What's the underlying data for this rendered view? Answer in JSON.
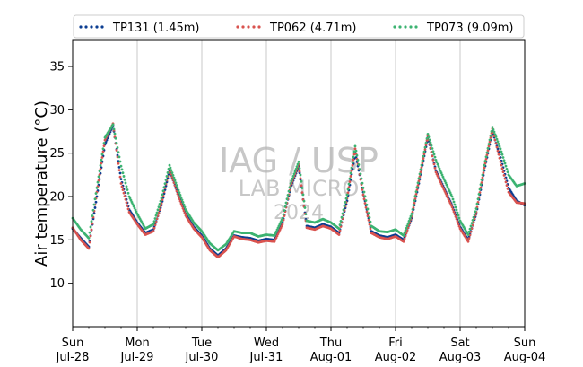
{
  "chart_data": {
    "type": "scatter",
    "ylabel": "Air temperature (°C)",
    "ylim": [
      5,
      38
    ],
    "yticks": [
      10,
      15,
      20,
      25,
      30,
      35
    ],
    "xlim": [
      "2024-07-28 00:00",
      "2024-08-04 00:00"
    ],
    "xticks": [
      {
        "day": "Sun",
        "date": "Jul-28"
      },
      {
        "day": "Mon",
        "date": "Jul-29"
      },
      {
        "day": "Tue",
        "date": "Jul-30"
      },
      {
        "day": "Wed",
        "date": "Jul-31"
      },
      {
        "day": "Thu",
        "date": "Aug-01"
      },
      {
        "day": "Fri",
        "date": "Aug-02"
      },
      {
        "day": "Sat",
        "date": "Aug-03"
      },
      {
        "day": "Sun",
        "date": "Aug-04"
      }
    ],
    "grid": "vertical-major",
    "legend_position": "top",
    "watermark": [
      "IAG / USP",
      "LAB MICRO",
      "2024"
    ],
    "series": [
      {
        "name": "TP131 (1.45m)",
        "color": "#0b3d91",
        "x": [
          "2024-07-28 00:00",
          "2024-07-28 03:00",
          "2024-07-28 06:00",
          "2024-07-28 09:00",
          "2024-07-28 12:00",
          "2024-07-28 15:00",
          "2024-07-28 18:00",
          "2024-07-28 21:00",
          "2024-07-29 00:00",
          "2024-07-29 03:00",
          "2024-07-29 06:00",
          "2024-07-29 09:00",
          "2024-07-29 12:00",
          "2024-07-29 15:00",
          "2024-07-29 18:00",
          "2024-07-29 21:00",
          "2024-07-30 00:00",
          "2024-07-30 03:00",
          "2024-07-30 06:00",
          "2024-07-30 09:00",
          "2024-07-30 12:00",
          "2024-07-30 15:00",
          "2024-07-30 18:00",
          "2024-07-30 21:00",
          "2024-07-31 00:00",
          "2024-07-31 03:00",
          "2024-07-31 06:00",
          "2024-07-31 09:00",
          "2024-07-31 12:00",
          "2024-07-31 15:00",
          "2024-07-31 18:00",
          "2024-07-31 21:00",
          "2024-08-01 00:00",
          "2024-08-01 03:00",
          "2024-08-01 06:00",
          "2024-08-01 09:00",
          "2024-08-01 12:00",
          "2024-08-01 15:00",
          "2024-08-01 18:00",
          "2024-08-01 21:00",
          "2024-08-02 00:00",
          "2024-08-02 03:00",
          "2024-08-02 06:00",
          "2024-08-02 09:00",
          "2024-08-02 12:00",
          "2024-08-02 15:00",
          "2024-08-02 18:00",
          "2024-08-02 21:00",
          "2024-08-03 00:00",
          "2024-08-03 03:00",
          "2024-08-03 06:00",
          "2024-08-03 09:00",
          "2024-08-03 12:00",
          "2024-08-03 15:00",
          "2024-08-03 18:00",
          "2024-08-03 21:00",
          "2024-08-04 00:00"
        ],
        "y": [
          16.3,
          15.2,
          14.2,
          20.0,
          26.0,
          28.2,
          22.0,
          18.5,
          17.0,
          15.8,
          16.2,
          19.0,
          23.0,
          20.5,
          18.0,
          16.5,
          15.5,
          14.0,
          13.2,
          14.0,
          15.5,
          15.3,
          15.2,
          14.9,
          15.1,
          15.0,
          17.0,
          21.0,
          23.5,
          16.6,
          16.4,
          16.8,
          16.5,
          15.8,
          19.5,
          25.0,
          20.5,
          16.0,
          15.5,
          15.3,
          15.6,
          15.0,
          17.5,
          22.0,
          26.8,
          23.0,
          21.0,
          19.0,
          16.5,
          15.0,
          18.0,
          23.0,
          27.5,
          24.5,
          21.0,
          19.5,
          19.0
        ]
      },
      {
        "name": "TP062 (4.71m)",
        "color": "#d9534f",
        "x": [
          "2024-07-28 00:00",
          "2024-07-28 03:00",
          "2024-07-28 06:00",
          "2024-07-28 09:00",
          "2024-07-28 12:00",
          "2024-07-28 15:00",
          "2024-07-28 18:00",
          "2024-07-28 21:00",
          "2024-07-29 00:00",
          "2024-07-29 03:00",
          "2024-07-29 06:00",
          "2024-07-29 09:00",
          "2024-07-29 12:00",
          "2024-07-29 15:00",
          "2024-07-29 18:00",
          "2024-07-29 21:00",
          "2024-07-30 00:00",
          "2024-07-30 03:00",
          "2024-07-30 06:00",
          "2024-07-30 09:00",
          "2024-07-30 12:00",
          "2024-07-30 15:00",
          "2024-07-30 18:00",
          "2024-07-30 21:00",
          "2024-07-31 00:00",
          "2024-07-31 03:00",
          "2024-07-31 06:00",
          "2024-07-31 09:00",
          "2024-07-31 12:00",
          "2024-07-31 15:00",
          "2024-07-31 18:00",
          "2024-07-31 21:00",
          "2024-08-01 00:00",
          "2024-08-01 03:00",
          "2024-08-01 06:00",
          "2024-08-01 09:00",
          "2024-08-01 12:00",
          "2024-08-01 15:00",
          "2024-08-01 18:00",
          "2024-08-01 21:00",
          "2024-08-02 00:00",
          "2024-08-02 03:00",
          "2024-08-02 06:00",
          "2024-08-02 09:00",
          "2024-08-02 12:00",
          "2024-08-02 15:00",
          "2024-08-02 18:00",
          "2024-08-02 21:00",
          "2024-08-03 00:00",
          "2024-08-03 03:00",
          "2024-08-03 06:00",
          "2024-08-03 09:00",
          "2024-08-03 12:00",
          "2024-08-03 15:00",
          "2024-08-03 18:00",
          "2024-08-03 21:00",
          "2024-08-04 00:00"
        ],
        "y": [
          16.4,
          15.0,
          14.0,
          20.5,
          26.5,
          28.4,
          21.5,
          18.2,
          16.8,
          15.6,
          16.0,
          19.2,
          23.2,
          20.3,
          17.8,
          16.3,
          15.3,
          13.8,
          13.0,
          13.8,
          15.4,
          15.1,
          15.0,
          14.7,
          14.9,
          14.8,
          16.8,
          21.2,
          23.7,
          16.4,
          16.2,
          16.6,
          16.3,
          15.6,
          19.8,
          25.5,
          20.2,
          15.8,
          15.3,
          15.1,
          15.4,
          14.8,
          17.7,
          22.3,
          27.0,
          22.8,
          20.8,
          18.8,
          16.3,
          14.8,
          18.2,
          23.3,
          27.8,
          24.0,
          20.5,
          19.3,
          19.2
        ]
      },
      {
        "name": "TP073 (9.09m)",
        "color": "#3cb371",
        "x": [
          "2024-07-28 00:00",
          "2024-07-28 03:00",
          "2024-07-28 06:00",
          "2024-07-28 09:00",
          "2024-07-28 12:00",
          "2024-07-28 15:00",
          "2024-07-28 18:00",
          "2024-07-28 21:00",
          "2024-07-29 00:00",
          "2024-07-29 03:00",
          "2024-07-29 06:00",
          "2024-07-29 09:00",
          "2024-07-29 12:00",
          "2024-07-29 15:00",
          "2024-07-29 18:00",
          "2024-07-29 21:00",
          "2024-07-30 00:00",
          "2024-07-30 03:00",
          "2024-07-30 06:00",
          "2024-07-30 09:00",
          "2024-07-30 12:00",
          "2024-07-30 15:00",
          "2024-07-30 18:00",
          "2024-07-30 21:00",
          "2024-07-31 00:00",
          "2024-07-31 03:00",
          "2024-07-31 06:00",
          "2024-07-31 09:00",
          "2024-07-31 12:00",
          "2024-07-31 15:00",
          "2024-07-31 18:00",
          "2024-07-31 21:00",
          "2024-08-01 00:00",
          "2024-08-01 03:00",
          "2024-08-01 06:00",
          "2024-08-01 09:00",
          "2024-08-01 12:00",
          "2024-08-01 15:00",
          "2024-08-01 18:00",
          "2024-08-01 21:00",
          "2024-08-02 00:00",
          "2024-08-02 03:00",
          "2024-08-02 06:00",
          "2024-08-02 09:00",
          "2024-08-02 12:00",
          "2024-08-02 15:00",
          "2024-08-02 18:00",
          "2024-08-02 21:00",
          "2024-08-03 00:00",
          "2024-08-03 03:00",
          "2024-08-03 06:00",
          "2024-08-03 09:00",
          "2024-08-03 12:00",
          "2024-08-03 15:00",
          "2024-08-03 18:00",
          "2024-08-03 21:00",
          "2024-08-04 00:00"
        ],
        "y": [
          17.5,
          16.2,
          15.2,
          21.0,
          26.8,
          28.3,
          23.5,
          20.0,
          18.0,
          16.3,
          16.8,
          19.8,
          23.6,
          21.0,
          18.5,
          17.0,
          16.0,
          14.6,
          13.8,
          14.5,
          16.0,
          15.8,
          15.8,
          15.4,
          15.6,
          15.5,
          17.5,
          21.5,
          24.0,
          17.2,
          17.0,
          17.4,
          17.0,
          16.3,
          20.2,
          25.8,
          21.0,
          16.6,
          16.0,
          15.9,
          16.2,
          15.5,
          18.0,
          22.6,
          27.2,
          24.2,
          22.0,
          20.0,
          17.2,
          15.6,
          18.6,
          23.6,
          28.0,
          25.5,
          22.5,
          21.2,
          21.5
        ]
      }
    ]
  }
}
